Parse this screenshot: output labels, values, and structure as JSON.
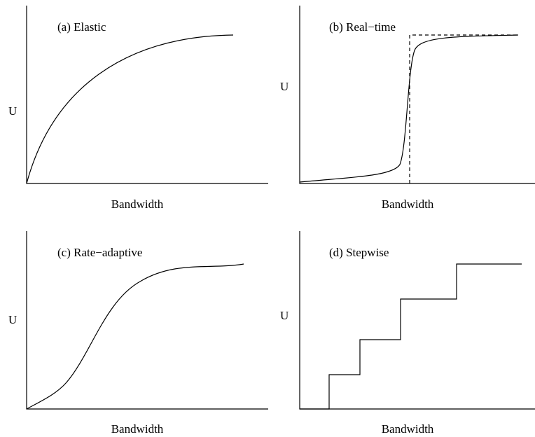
{
  "panels": [
    {
      "label": "(a) Elastic",
      "y_label": "U",
      "x_label": "Bandwidth"
    },
    {
      "label": "(b) Real−time",
      "y_label": "U",
      "x_label": "Bandwidth"
    },
    {
      "label": "(c) Rate−adaptive",
      "y_label": "U",
      "x_label": "Bandwidth"
    },
    {
      "label": "(d) Stepwise",
      "y_label": "U",
      "x_label": "Bandwidth"
    }
  ]
}
